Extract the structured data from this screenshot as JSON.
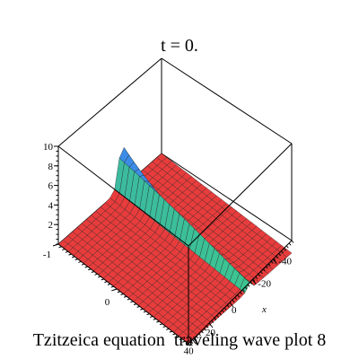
{
  "chart_data": {
    "type": "surface3d",
    "title": "t = 0.",
    "caption": "Tzitzeica equation  traveling wave plot 8",
    "x_axis": {
      "label": "x",
      "ticks": [
        "-40",
        "-20",
        "0",
        "20",
        "40"
      ]
    },
    "y_axis": {
      "ticks": [
        "-1",
        "0"
      ]
    },
    "z_axis": {
      "ticks": [
        "2",
        "4",
        "6",
        "8",
        "10"
      ],
      "range": [
        0,
        10
      ]
    },
    "surface": {
      "baseline_value": 0,
      "peak_value": 10,
      "colors": {
        "flat": "#e83c3c",
        "mid": "#3cc88c",
        "high": "#3c8ce6",
        "ridge_light": "#64dcb4"
      }
    }
  }
}
